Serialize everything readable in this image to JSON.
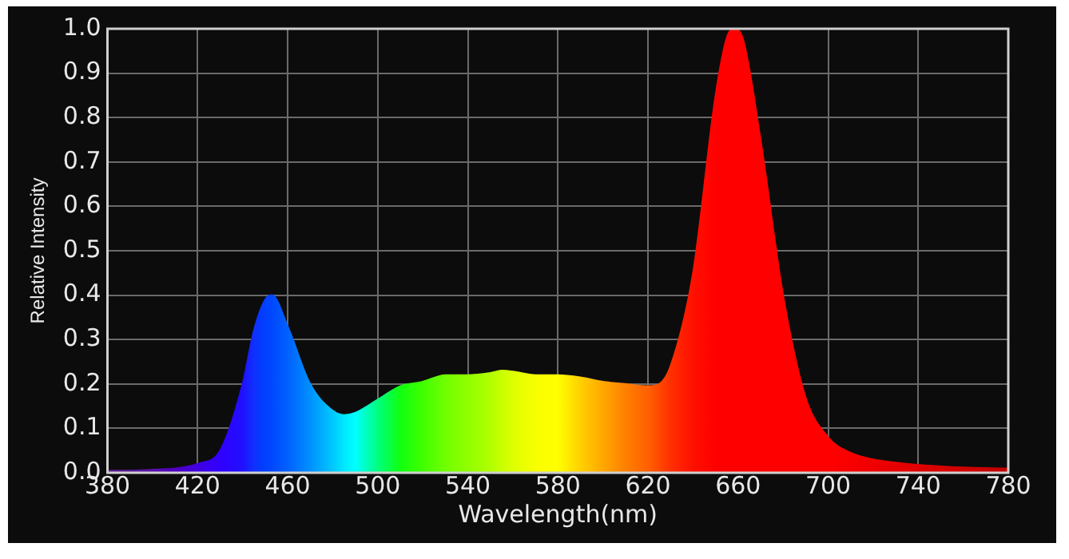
{
  "chart_data": {
    "type": "area",
    "xlabel": "Wavelength(nm)",
    "ylabel": "Relative Intensity",
    "x": [
      380,
      390,
      400,
      410,
      420,
      430,
      440,
      445,
      450,
      453,
      460,
      470,
      480,
      485,
      490,
      500,
      510,
      520,
      530,
      540,
      550,
      555,
      560,
      570,
      580,
      590,
      600,
      610,
      620,
      625,
      630,
      640,
      650,
      655,
      658,
      662,
      670,
      680,
      690,
      700,
      710,
      720,
      740,
      760,
      780
    ],
    "series": [
      {
        "values": [
          0.005,
          0.005,
          0.007,
          0.01,
          0.02,
          0.05,
          0.2,
          0.32,
          0.39,
          0.4,
          0.33,
          0.2,
          0.14,
          0.13,
          0.135,
          0.165,
          0.195,
          0.205,
          0.22,
          0.22,
          0.225,
          0.23,
          0.228,
          0.22,
          0.22,
          0.215,
          0.205,
          0.2,
          0.195,
          0.2,
          0.24,
          0.45,
          0.85,
          0.98,
          1.0,
          0.98,
          0.75,
          0.4,
          0.17,
          0.08,
          0.045,
          0.03,
          0.018,
          0.012,
          0.01
        ],
        "colors": [
          "#5a1a8a",
          "#5a1a9a",
          "#5a10a8",
          "#5000c0",
          "#4000e0",
          "#3000ff",
          "#2010ff",
          "#1030ff",
          "#0040ff",
          "#0048ff",
          "#0060ff",
          "#0090ff",
          "#00c8ff",
          "#00e8ff",
          "#00ffff",
          "#00ff80",
          "#10ff10",
          "#40ff00",
          "#70ff00",
          "#90ff00",
          "#b0ff00",
          "#c8ff00",
          "#ddff00",
          "#f8ff00",
          "#ffff00",
          "#ffd000",
          "#ffa800",
          "#ff8000",
          "#ff6000",
          "#ff4800",
          "#ff3000",
          "#ff1000",
          "#ff0000",
          "#ff0000",
          "#ff0000",
          "#ff0000",
          "#ff0000",
          "#ff0000",
          "#ff0000",
          "#ff0000",
          "#f80000",
          "#f00000",
          "#e00000",
          "#d00000",
          "#c00000"
        ]
      }
    ],
    "xlim": [
      380,
      780
    ],
    "xticks": [
      380,
      420,
      460,
      500,
      540,
      580,
      620,
      660,
      700,
      740,
      780
    ],
    "ylim": [
      0,
      1
    ],
    "yticks": [
      {
        "value": 0,
        "label": "0.0"
      },
      {
        "value": 0.1,
        "label": "0.1"
      },
      {
        "value": 0.2,
        "label": "0.2"
      },
      {
        "value": 0.3,
        "label": "0.3"
      },
      {
        "value": 0.4,
        "label": "0.4"
      },
      {
        "value": 0.5,
        "label": "0.5"
      },
      {
        "value": 0.6,
        "label": "0.6"
      },
      {
        "value": 0.7,
        "label": "0.7"
      },
      {
        "value": 0.8,
        "label": "0.8"
      },
      {
        "value": 0.9,
        "label": "0.9"
      },
      {
        "value": 1,
        "label": "1.0"
      }
    ],
    "grid": true
  }
}
